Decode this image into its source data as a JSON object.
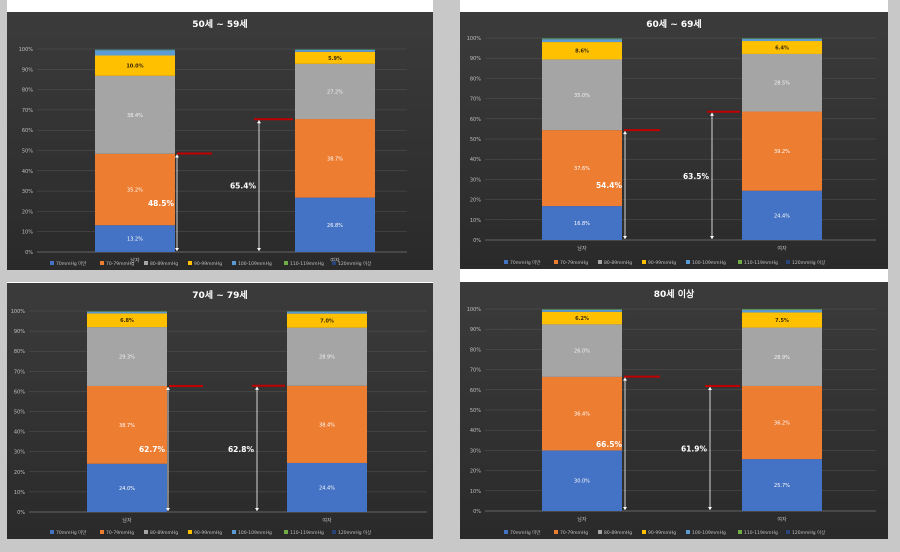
{
  "legend_labels": [
    "70mmHg 미만",
    "70-79mmHg",
    "80-89mmHg",
    "90-99mmHg",
    "100-109mmHg",
    "110-119mmHg",
    "120mmHg 이상"
  ],
  "series_colors": [
    "#4472c4",
    "#ed7d31",
    "#a5a5a5",
    "#ffc000",
    "#5b9bd5",
    "#70ad47",
    "#264478"
  ],
  "annotation_color": "#c00000",
  "chart_data": [
    {
      "type": "bar",
      "stacked": true,
      "title": "50세 ~ 59세",
      "categories": [
        "남자",
        "여자"
      ],
      "ylim": [
        0,
        100
      ],
      "yticks": [
        "0%",
        "10%",
        "20%",
        "30%",
        "40%",
        "50%",
        "60%",
        "70%",
        "80%",
        "90%",
        "100%"
      ],
      "series": [
        {
          "name": "70mmHg 미만",
          "values": [
            13.2,
            26.8
          ],
          "labels": [
            "13.2%",
            "26.8%"
          ]
        },
        {
          "name": "70-79mmHg",
          "values": [
            35.2,
            38.7
          ],
          "labels": [
            "35.2%",
            "38.7%"
          ]
        },
        {
          "name": "80-89mmHg",
          "values": [
            38.4,
            27.2
          ],
          "labels": [
            "38.4%",
            "27.2%"
          ]
        },
        {
          "name": "90-99mmHg",
          "values": [
            10.0,
            5.9
          ],
          "labels": [
            "10.0%",
            "5.9%"
          ]
        },
        {
          "name": "100-109mmHg",
          "values": [
            2.6,
            1.0
          ],
          "labels": [
            "",
            ""
          ]
        },
        {
          "name": "110-119mmHg",
          "values": [
            0.3,
            0.2
          ],
          "labels": [
            "",
            ""
          ]
        },
        {
          "name": "120mmHg 이상",
          "values": [
            0.3,
            0.2
          ],
          "labels": [
            "",
            ""
          ]
        }
      ],
      "annotations": [
        {
          "value": 48.5,
          "label": "48.5%"
        },
        {
          "value": 65.4,
          "label": "65.4%"
        }
      ]
    },
    {
      "type": "bar",
      "stacked": true,
      "title": "60세 ~ 69세",
      "categories": [
        "남자",
        "여자"
      ],
      "ylim": [
        0,
        100
      ],
      "yticks": [
        "0%",
        "10%",
        "20%",
        "30%",
        "40%",
        "50%",
        "60%",
        "70%",
        "80%",
        "90%",
        "100%"
      ],
      "series": [
        {
          "name": "70mmHg 미만",
          "values": [
            16.8,
            24.4
          ],
          "labels": [
            "16.8%",
            "24.4%"
          ]
        },
        {
          "name": "70-79mmHg",
          "values": [
            37.6,
            39.2
          ],
          "labels": [
            "37.6%",
            "39.2%"
          ]
        },
        {
          "name": "80-89mmHg",
          "values": [
            35.0,
            28.5
          ],
          "labels": [
            "35.0%",
            "28.5%"
          ]
        },
        {
          "name": "90-99mmHg",
          "values": [
            8.6,
            6.4
          ],
          "labels": [
            "8.6%",
            "6.4%"
          ]
        },
        {
          "name": "100-109mmHg",
          "values": [
            1.4,
            1.0
          ],
          "labels": [
            "",
            ""
          ]
        },
        {
          "name": "110-119mmHg",
          "values": [
            0.4,
            0.3
          ],
          "labels": [
            "",
            ""
          ]
        },
        {
          "name": "120mmHg 이상",
          "values": [
            0.2,
            0.2
          ],
          "labels": [
            "",
            ""
          ]
        }
      ],
      "annotations": [
        {
          "value": 54.4,
          "label": "54.4%"
        },
        {
          "value": 63.5,
          "label": "63.5%"
        }
      ]
    },
    {
      "type": "bar",
      "stacked": true,
      "title": "70세 ~ 79세",
      "categories": [
        "남자",
        "여자"
      ],
      "ylim": [
        0,
        100
      ],
      "yticks": [
        "0%",
        "10%",
        "20%",
        "30%",
        "40%",
        "50%",
        "60%",
        "70%",
        "80%",
        "90%",
        "100%"
      ],
      "series": [
        {
          "name": "70mmHg 미만",
          "values": [
            24.0,
            24.4
          ],
          "labels": [
            "24.0%",
            "24.4%"
          ]
        },
        {
          "name": "70-79mmHg",
          "values": [
            38.7,
            38.4
          ],
          "labels": [
            "38.7%",
            "38.4%"
          ]
        },
        {
          "name": "80-89mmHg",
          "values": [
            29.3,
            28.9
          ],
          "labels": [
            "29.3%",
            "28.9%"
          ]
        },
        {
          "name": "90-99mmHg",
          "values": [
            6.8,
            7.0
          ],
          "labels": [
            "6.8%",
            "7.0%"
          ]
        },
        {
          "name": "100-109mmHg",
          "values": [
            0.8,
            1.0
          ],
          "labels": [
            "",
            ""
          ]
        },
        {
          "name": "110-119mmHg",
          "values": [
            0.3,
            0.2
          ],
          "labels": [
            "",
            ""
          ]
        },
        {
          "name": "120mmHg 이상",
          "values": [
            0.1,
            0.1
          ],
          "labels": [
            "",
            ""
          ]
        }
      ],
      "annotations": [
        {
          "value": 62.7,
          "label": "62.7%"
        },
        {
          "value": 62.8,
          "label": "62.8%"
        }
      ]
    },
    {
      "type": "bar",
      "stacked": true,
      "title": "80세 이상",
      "categories": [
        "남자",
        "여자"
      ],
      "ylim": [
        0,
        100
      ],
      "yticks": [
        "0%",
        "10%",
        "20%",
        "30%",
        "40%",
        "50%",
        "60%",
        "70%",
        "80%",
        "90%",
        "100%"
      ],
      "series": [
        {
          "name": "70mmHg 미만",
          "values": [
            30.0,
            25.7
          ],
          "labels": [
            "30.0%",
            "25.7%"
          ]
        },
        {
          "name": "70-79mmHg",
          "values": [
            36.4,
            36.2
          ],
          "labels": [
            "36.4%",
            "36.2%"
          ]
        },
        {
          "name": "80-89mmHg",
          "values": [
            26.0,
            28.9
          ],
          "labels": [
            "26.0%",
            "28.9%"
          ]
        },
        {
          "name": "90-99mmHg",
          "values": [
            6.2,
            7.5
          ],
          "labels": [
            "6.2%",
            "7.5%"
          ]
        },
        {
          "name": "100-109mmHg",
          "values": [
            1.0,
            1.2
          ],
          "labels": [
            "",
            ""
          ]
        },
        {
          "name": "110-119mmHg",
          "values": [
            0.3,
            0.4
          ],
          "labels": [
            "",
            ""
          ]
        },
        {
          "name": "120mmHg 이상",
          "values": [
            0.1,
            0.1
          ],
          "labels": [
            "",
            ""
          ]
        }
      ],
      "annotations": [
        {
          "value": 66.5,
          "label": "66.5%"
        },
        {
          "value": 61.9,
          "label": "61.9%"
        }
      ]
    }
  ]
}
